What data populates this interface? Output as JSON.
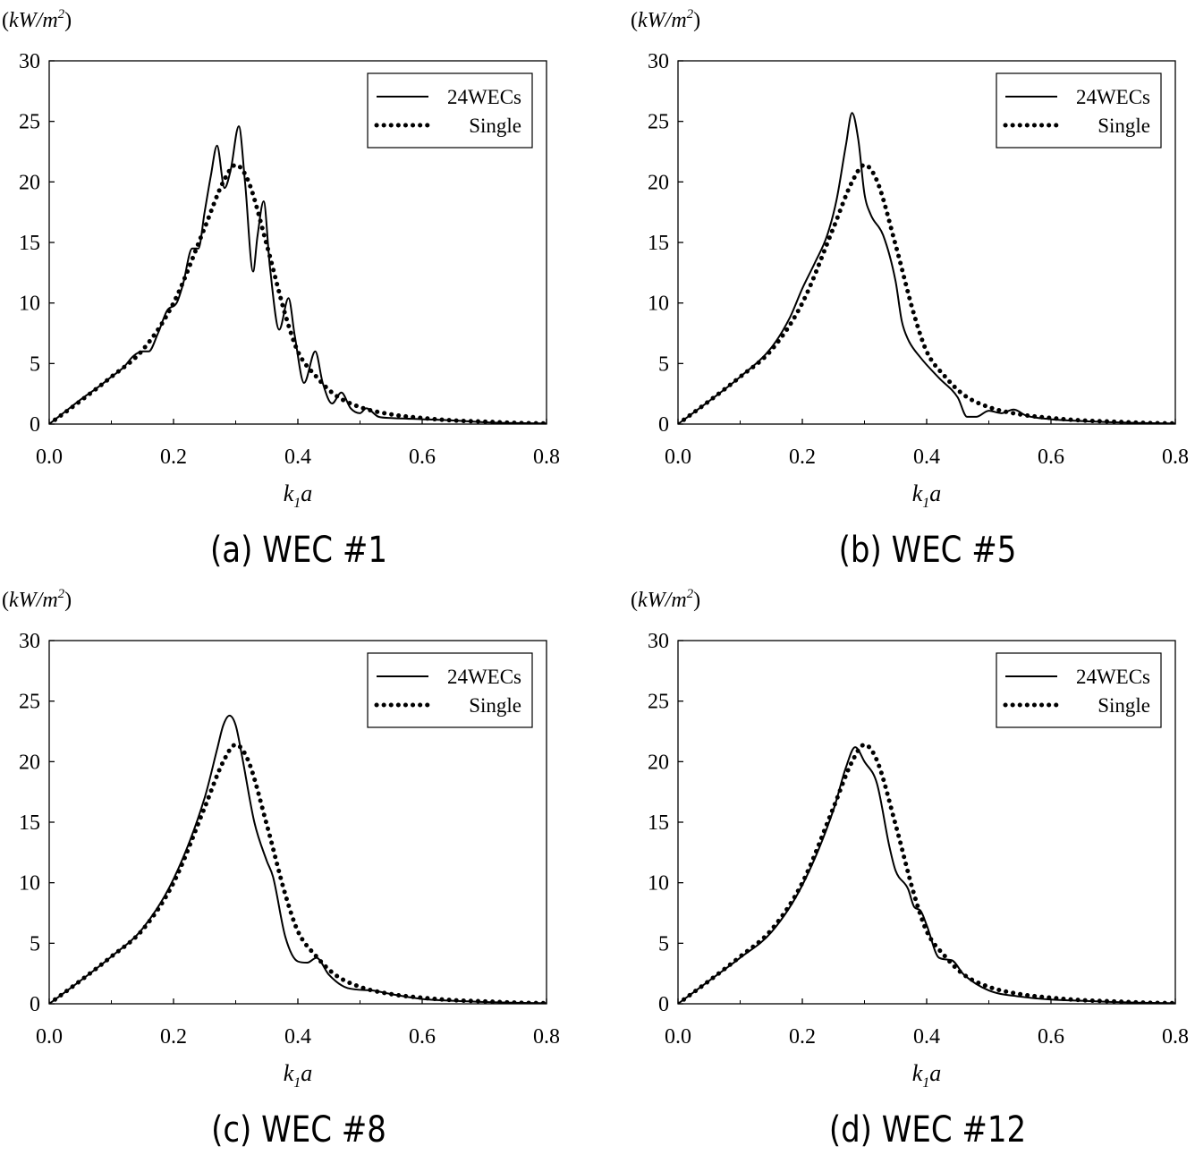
{
  "figure": {
    "unit_label": "(kW/m²)",
    "unit_main": "kW/m",
    "unit_sup": "2",
    "xlabel_main": "k",
    "xlabel_sub": "1",
    "xlabel_tail": "a"
  },
  "chart_data": [
    {
      "type": "line",
      "caption": "(a) WEC #1",
      "xlabel": "k1a",
      "ylabel": "(kW/m2)",
      "xlim": [
        0.0,
        0.8
      ],
      "ylim": [
        0,
        30
      ],
      "xticks": [
        "0.0",
        "0.2",
        "0.4",
        "0.6",
        "0.8"
      ],
      "yticks": [
        "0",
        "5",
        "10",
        "15",
        "20",
        "25",
        "30"
      ],
      "legend_position": "top-right",
      "series": [
        {
          "name": "24WECs",
          "style": "solid",
          "x": [
            0,
            0.02,
            0.05,
            0.08,
            0.1,
            0.12,
            0.135,
            0.15,
            0.16,
            0.175,
            0.19,
            0.205,
            0.215,
            0.23,
            0.24,
            0.25,
            0.26,
            0.27,
            0.282,
            0.292,
            0.305,
            0.315,
            0.328,
            0.335,
            0.345,
            0.355,
            0.37,
            0.385,
            0.395,
            0.41,
            0.428,
            0.44,
            0.455,
            0.47,
            0.485,
            0.5,
            0.51,
            0.53,
            0.55,
            0.6,
            0.65,
            0.7,
            0.75,
            0.8
          ],
          "y": [
            0,
            0.8,
            2.0,
            3.1,
            3.9,
            4.7,
            5.6,
            6.0,
            6.0,
            7.5,
            9.4,
            10.0,
            11.5,
            14.5,
            14.5,
            17.5,
            20.5,
            23.0,
            19.5,
            21.0,
            24.6,
            20.0,
            12.6,
            15.5,
            18.4,
            13.0,
            7.8,
            10.4,
            7.3,
            3.4,
            6.0,
            3.4,
            1.7,
            2.6,
            1.3,
            0.9,
            1.3,
            0.6,
            0.5,
            0.4,
            0.3,
            0.15,
            0.08,
            0.05
          ]
        },
        {
          "name": "Single",
          "style": "dotted",
          "x": [
            0,
            0.05,
            0.1,
            0.15,
            0.2,
            0.25,
            0.28,
            0.3,
            0.32,
            0.35,
            0.38,
            0.4,
            0.43,
            0.46,
            0.5,
            0.55,
            0.6,
            0.65,
            0.7,
            0.75,
            0.8
          ],
          "y": [
            0,
            1.9,
            3.9,
            6.1,
            10.0,
            16.2,
            20.0,
            21.4,
            20.1,
            14.8,
            9.0,
            6.0,
            3.9,
            2.4,
            1.4,
            0.8,
            0.5,
            0.3,
            0.2,
            0.1,
            0.05
          ]
        }
      ]
    },
    {
      "type": "line",
      "caption": "(b) WEC #5",
      "xlabel": "k1a",
      "ylabel": "(kW/m2)",
      "xlim": [
        0.0,
        0.8
      ],
      "ylim": [
        0,
        30
      ],
      "xticks": [
        "0.0",
        "0.2",
        "0.4",
        "0.6",
        "0.8"
      ],
      "yticks": [
        "0",
        "5",
        "10",
        "15",
        "20",
        "25",
        "30"
      ],
      "legend_position": "top-right",
      "series": [
        {
          "name": "24WECs",
          "style": "solid",
          "x": [
            0,
            0.05,
            0.1,
            0.15,
            0.18,
            0.2,
            0.22,
            0.24,
            0.255,
            0.27,
            0.28,
            0.29,
            0.3,
            0.31,
            0.33,
            0.35,
            0.36,
            0.37,
            0.39,
            0.42,
            0.45,
            0.465,
            0.48,
            0.5,
            0.52,
            0.54,
            0.56,
            0.6,
            0.65,
            0.7,
            0.75,
            0.8
          ],
          "y": [
            0,
            1.9,
            3.9,
            6.3,
            8.8,
            11.2,
            13.3,
            15.6,
            18.5,
            23.0,
            25.7,
            23.5,
            19.0,
            17.3,
            15.6,
            11.8,
            8.5,
            7.0,
            5.5,
            3.8,
            2.2,
            0.6,
            0.6,
            1.1,
            0.9,
            1.2,
            0.7,
            0.4,
            0.25,
            0.15,
            0.08,
            0.05
          ]
        },
        {
          "name": "Single",
          "style": "dotted",
          "x": [
            0,
            0.05,
            0.1,
            0.15,
            0.2,
            0.25,
            0.28,
            0.3,
            0.32,
            0.35,
            0.38,
            0.4,
            0.43,
            0.46,
            0.5,
            0.55,
            0.6,
            0.65,
            0.7,
            0.75,
            0.8
          ],
          "y": [
            0,
            1.9,
            3.9,
            6.1,
            10.0,
            16.2,
            20.0,
            21.4,
            20.1,
            14.8,
            9.0,
            6.0,
            3.9,
            2.4,
            1.4,
            0.8,
            0.5,
            0.3,
            0.2,
            0.1,
            0.05
          ]
        }
      ]
    },
    {
      "type": "line",
      "caption": "(c) WEC #8",
      "xlabel": "k1a",
      "ylabel": "(kW/m2)",
      "xlim": [
        0.0,
        0.8
      ],
      "ylim": [
        0,
        30
      ],
      "xticks": [
        "0.0",
        "0.2",
        "0.4",
        "0.6",
        "0.8"
      ],
      "yticks": [
        "0",
        "5",
        "10",
        "15",
        "20",
        "25",
        "30"
      ],
      "legend_position": "top-right",
      "series": [
        {
          "name": "24WECs",
          "style": "solid",
          "x": [
            0,
            0.05,
            0.1,
            0.15,
            0.2,
            0.25,
            0.27,
            0.28,
            0.29,
            0.3,
            0.31,
            0.33,
            0.35,
            0.36,
            0.38,
            0.4,
            0.415,
            0.43,
            0.45,
            0.48,
            0.52,
            0.55,
            0.6,
            0.65,
            0.7,
            0.75,
            0.8
          ],
          "y": [
            0,
            1.9,
            3.9,
            6.2,
            10.3,
            17.0,
            21.0,
            23.0,
            23.8,
            23.0,
            20.5,
            15.0,
            11.8,
            10.5,
            5.5,
            3.5,
            3.4,
            3.8,
            2.4,
            1.3,
            1.1,
            0.8,
            0.4,
            0.25,
            0.15,
            0.08,
            0.05
          ]
        },
        {
          "name": "Single",
          "style": "dotted",
          "x": [
            0,
            0.05,
            0.1,
            0.15,
            0.2,
            0.25,
            0.28,
            0.3,
            0.32,
            0.35,
            0.38,
            0.4,
            0.43,
            0.46,
            0.5,
            0.55,
            0.6,
            0.65,
            0.7,
            0.75,
            0.8
          ],
          "y": [
            0,
            1.9,
            3.9,
            6.1,
            10.0,
            16.2,
            20.0,
            21.4,
            20.1,
            14.8,
            9.0,
            6.0,
            3.9,
            2.4,
            1.4,
            0.8,
            0.5,
            0.3,
            0.2,
            0.1,
            0.05
          ]
        }
      ]
    },
    {
      "type": "line",
      "caption": "(d) WEC #12",
      "xlabel": "k1a",
      "ylabel": "(kW/m2)",
      "xlim": [
        0.0,
        0.8
      ],
      "ylim": [
        0,
        30
      ],
      "xticks": [
        "0.0",
        "0.2",
        "0.4",
        "0.6",
        "0.8"
      ],
      "yticks": [
        "0",
        "5",
        "10",
        "15",
        "20",
        "25",
        "30"
      ],
      "legend_position": "top-right",
      "series": [
        {
          "name": "24WECs",
          "style": "solid",
          "x": [
            0,
            0.05,
            0.1,
            0.15,
            0.2,
            0.25,
            0.27,
            0.285,
            0.3,
            0.32,
            0.34,
            0.35,
            0.37,
            0.38,
            0.39,
            0.4,
            0.42,
            0.44,
            0.46,
            0.5,
            0.55,
            0.6,
            0.65,
            0.7,
            0.75,
            0.8
          ],
          "y": [
            0,
            1.9,
            3.8,
            5.9,
            9.8,
            16.0,
            19.5,
            21.2,
            20.0,
            18.2,
            13.0,
            11.0,
            9.5,
            8.0,
            7.7,
            6.5,
            3.8,
            3.6,
            2.4,
            1.1,
            0.6,
            0.35,
            0.25,
            0.15,
            0.08,
            0.05
          ]
        },
        {
          "name": "Single",
          "style": "dotted",
          "x": [
            0,
            0.05,
            0.1,
            0.15,
            0.2,
            0.25,
            0.28,
            0.3,
            0.32,
            0.35,
            0.38,
            0.4,
            0.43,
            0.46,
            0.5,
            0.55,
            0.6,
            0.65,
            0.7,
            0.75,
            0.8
          ],
          "y": [
            0,
            1.9,
            3.9,
            6.1,
            10.0,
            16.2,
            20.0,
            21.4,
            20.1,
            14.8,
            9.0,
            6.0,
            3.9,
            2.4,
            1.4,
            0.8,
            0.5,
            0.3,
            0.2,
            0.1,
            0.05
          ]
        }
      ]
    }
  ]
}
